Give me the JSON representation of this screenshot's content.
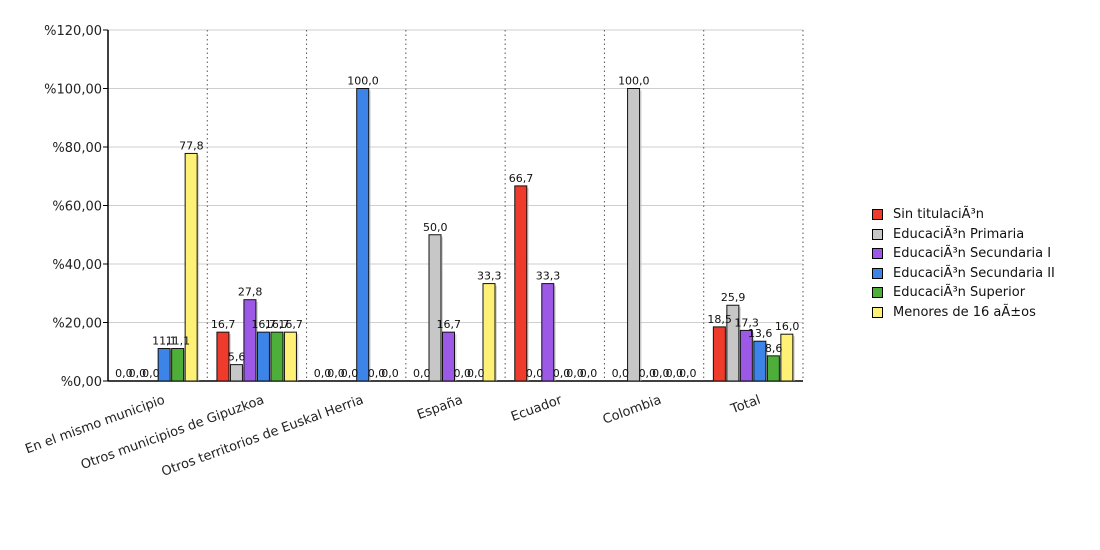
{
  "chart_data": {
    "type": "bar",
    "categories": [
      "En el mismo municipio",
      "Otros municipios de Gipuzkoa",
      "Otros territorios de Euskal Herria",
      "España",
      "Ecuador",
      "Colombia",
      "Total"
    ],
    "y_ticks": [
      "%0,00",
      "%20,00",
      "%40,00",
      "%60,00",
      "%80,00",
      "%100,00",
      "%120,00"
    ],
    "ylim": [
      0,
      120
    ],
    "grid": "horizontal solid, vertical dotted",
    "legend_position": "right",
    "series": [
      {
        "name": "Sin titulaciÃ³n",
        "color": "#ef3b2c",
        "values": [
          0.0,
          16.7,
          0.0,
          0.0,
          66.7,
          0.0,
          18.5
        ],
        "labels": [
          "0,0",
          "16,7",
          "0,0",
          "0,0",
          "66,7",
          "0,0",
          "18,5"
        ]
      },
      {
        "name": "EducaciÃ³n Primaria",
        "color": "#c7c7c7",
        "values": [
          0.0,
          5.6,
          0.0,
          50.0,
          0.0,
          100.0,
          25.9
        ],
        "labels": [
          "0,0",
          "5,6",
          "0,0",
          "50,0",
          "0,0",
          "100,0",
          "25,9"
        ]
      },
      {
        "name": "EducaciÃ³n Secundaria I",
        "color": "#9b59e6",
        "values": [
          0.0,
          27.8,
          0.0,
          16.7,
          33.3,
          0.0,
          17.3
        ],
        "labels": [
          "0,0",
          "27,8",
          "0,0",
          "16,7",
          "33,3",
          "0,0",
          "17,3"
        ]
      },
      {
        "name": "EducaciÃ³n Secundaria II",
        "color": "#3d84e8",
        "values": [
          11.1,
          16.7,
          100.0,
          0.0,
          0.0,
          0.0,
          13.6
        ],
        "labels": [
          "11,1",
          "16,7",
          "100,0",
          "0,0",
          "0,0",
          "0,0",
          "13,6"
        ]
      },
      {
        "name": "EducaciÃ³n Superior",
        "color": "#4daf3a",
        "values": [
          11.1,
          16.7,
          0.0,
          0.0,
          0.0,
          0.0,
          8.6
        ],
        "labels": [
          "11,1",
          "16,7",
          "0,0",
          "0,0",
          "0,0",
          "0,0",
          "8,6"
        ]
      },
      {
        "name": "Menores de 16 aÃ±os",
        "color": "#fff176",
        "values": [
          77.8,
          16.7,
          0.0,
          33.3,
          0.0,
          0.0,
          16.0
        ],
        "labels": [
          "77,8",
          "16,7",
          "0,0",
          "33,3",
          "0,0",
          "0,0",
          "16,0"
        ]
      }
    ]
  }
}
